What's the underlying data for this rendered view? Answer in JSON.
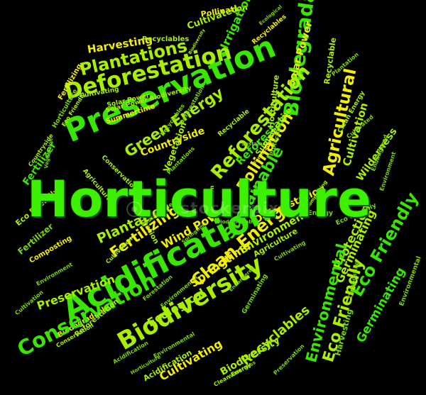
{
  "colors": {
    "background": "#000000",
    "green": "#39e600",
    "lime": "#a8f000",
    "yellow": "#f2f000",
    "mid": "#7bd800"
  },
  "hero": "Horticulture",
  "watermark": "stockerpix",
  "words": [
    {
      "id": "w0",
      "t": "Preservation",
      "c": "g"
    },
    {
      "id": "w1",
      "t": "Deforestation",
      "c": "l"
    },
    {
      "id": "w2",
      "t": "Plantations",
      "c": "l"
    },
    {
      "id": "w3",
      "t": "Harvesting",
      "c": "y"
    },
    {
      "id": "w4",
      "t": "Recyclables",
      "c": "l"
    },
    {
      "id": "w5",
      "t": "Pollination",
      "c": "y"
    },
    {
      "id": "w6",
      "t": "Cultivated",
      "c": "l"
    },
    {
      "id": "w7",
      "t": "Irrigation",
      "c": "g"
    },
    {
      "id": "w8",
      "t": "Ecological",
      "c": "m"
    },
    {
      "id": "w9",
      "t": "Recyclables",
      "c": "y"
    },
    {
      "id": "w10",
      "t": "Biodiversity",
      "c": "l"
    },
    {
      "id": "w11",
      "t": "Solar Power",
      "c": "l"
    },
    {
      "id": "w12",
      "t": "Biodegradable",
      "c": "g"
    },
    {
      "id": "w13",
      "t": "Solar Power",
      "c": "y"
    },
    {
      "id": "w14",
      "t": "Recyclable",
      "c": "l"
    },
    {
      "id": "w15",
      "t": "Plantation",
      "c": "m"
    },
    {
      "id": "w16",
      "t": "Cultivating",
      "c": "l"
    },
    {
      "id": "w17",
      "t": "Fertilizing",
      "c": "y"
    },
    {
      "id": "w18",
      "t": "Eco Friendly",
      "c": "l"
    },
    {
      "id": "w19",
      "t": "Horticulture",
      "c": "m"
    },
    {
      "id": "w20",
      "t": "Countryside",
      "c": "l"
    },
    {
      "id": "w21",
      "t": "Fertilizer",
      "c": "g"
    },
    {
      "id": "w22",
      "t": "Vegetation",
      "c": "m"
    },
    {
      "id": "w23",
      "t": "Conservation",
      "c": "l"
    },
    {
      "id": "w24",
      "t": "Agricultural",
      "c": "l"
    },
    {
      "id": "w25",
      "t": "Green Energy",
      "c": "l"
    },
    {
      "id": "w26",
      "t": "Countryside",
      "c": "y"
    },
    {
      "id": "w27",
      "t": "Summertime",
      "c": "y"
    },
    {
      "id": "w28",
      "t": "Solar Power Biodiversity",
      "c": "l"
    },
    {
      "id": "w29",
      "t": "Reforestation",
      "c": "l"
    },
    {
      "id": "w30",
      "t": "Deforestation",
      "c": "m"
    },
    {
      "id": "w31",
      "t": "Vegetation",
      "c": "l"
    },
    {
      "id": "w32",
      "t": "Plantations",
      "c": "m"
    },
    {
      "id": "w33",
      "t": "Reforestation",
      "c": "g"
    },
    {
      "id": "w34",
      "t": "Recyclable",
      "c": "l"
    },
    {
      "id": "w35",
      "t": "Sustainable",
      "c": "m"
    },
    {
      "id": "w36",
      "t": "Pollination",
      "c": "y"
    },
    {
      "id": "w37",
      "t": "Summertime",
      "c": "l"
    },
    {
      "id": "w38",
      "t": "Protection",
      "c": "m"
    },
    {
      "id": "w39",
      "t": "Horticulture",
      "c": "l"
    },
    {
      "id": "w40",
      "t": "Recyclables",
      "c": "m"
    },
    {
      "id": "w41",
      "t": "Forestation",
      "c": "y"
    },
    {
      "id": "w42",
      "t": "Agricultural",
      "c": "y"
    },
    {
      "id": "w43",
      "t": "Clean Energy",
      "c": "l"
    },
    {
      "id": "w44",
      "t": "Cultivation",
      "c": "l"
    },
    {
      "id": "w45",
      "t": "Cultivated",
      "c": "m"
    },
    {
      "id": "w46",
      "t": "Wilderness",
      "c": "l"
    },
    {
      "id": "w47",
      "t": "Endangered",
      "c": "m"
    },
    {
      "id": "w48",
      "t": "Environment",
      "c": "m"
    },
    {
      "id": "w49",
      "t": "Irrigation",
      "c": "l"
    },
    {
      "id": "w50",
      "t": "Sustainable",
      "c": "m"
    },
    {
      "id": "w51",
      "t": "Springtime",
      "c": "m"
    },
    {
      "id": "w52",
      "t": "Pollination",
      "c": "l"
    },
    {
      "id": "w53",
      "t": "Biodegradable",
      "c": "m"
    },
    {
      "id": "w54",
      "t": "Deforestation",
      "c": "y"
    },
    {
      "id": "w55",
      "t": "Green Energy",
      "c": "m"
    },
    {
      "id": "w56",
      "t": "Plantation",
      "c": "l"
    },
    {
      "id": "w57",
      "t": "Fertilizing",
      "c": "y"
    },
    {
      "id": "w58",
      "t": "Cultivation",
      "c": "l"
    },
    {
      "id": "w59",
      "t": "Wind Power",
      "c": "y"
    },
    {
      "id": "w60",
      "t": "Clean Energy",
      "c": "y"
    },
    {
      "id": "w61",
      "t": "Sustainable",
      "c": "g"
    },
    {
      "id": "w62",
      "t": "Environment",
      "c": "l"
    },
    {
      "id": "w63",
      "t": "Agriculture",
      "c": "l"
    },
    {
      "id": "w64",
      "t": "Cultivating",
      "c": "m"
    },
    {
      "id": "w65",
      "t": "Protection",
      "c": "l"
    },
    {
      "id": "w66",
      "t": "Eco Friendly",
      "c": "g"
    },
    {
      "id": "w67",
      "t": "Germinating",
      "c": "l"
    },
    {
      "id": "w68",
      "t": "Eco Friendly",
      "c": "m"
    },
    {
      "id": "w69",
      "t": "Composting",
      "c": "l"
    },
    {
      "id": "w70",
      "t": "Fertilizer",
      "c": "m"
    },
    {
      "id": "w71",
      "t": "Eco Friendly",
      "c": "l"
    },
    {
      "id": "w72",
      "t": "Composting",
      "c": "y"
    },
    {
      "id": "w73",
      "t": "Acidification",
      "c": "g"
    },
    {
      "id": "w74",
      "t": "Preservation",
      "c": "l"
    },
    {
      "id": "w75",
      "t": "Environment",
      "c": "m"
    },
    {
      "id": "w76",
      "t": "Conservation",
      "c": "l"
    },
    {
      "id": "w77",
      "t": "Cultivation",
      "c": "m"
    },
    {
      "id": "w78",
      "t": "Biodegradable",
      "c": "y"
    },
    {
      "id": "w79",
      "t": "Conservation",
      "c": "g"
    },
    {
      "id": "w80",
      "t": "Reforestation",
      "c": "l"
    },
    {
      "id": "w81",
      "t": "Biodiversity",
      "c": "l"
    },
    {
      "id": "w82",
      "t": "Ecological",
      "c": "l"
    },
    {
      "id": "w83",
      "t": "Environmental",
      "c": "m"
    },
    {
      "id": "w84",
      "t": "Forestation",
      "c": "m"
    },
    {
      "id": "w85",
      "t": "Springtime",
      "c": "y"
    },
    {
      "id": "w86",
      "t": "Endangered",
      "c": "m"
    },
    {
      "id": "w87",
      "t": "Germinating",
      "c": "m"
    },
    {
      "id": "w88",
      "t": "Environmental",
      "c": "g"
    },
    {
      "id": "w89",
      "t": "Eco Friendly",
      "c": "l"
    },
    {
      "id": "w90",
      "t": "Harvesting",
      "c": "m"
    },
    {
      "id": "w91",
      "t": "Germinating",
      "c": "g"
    },
    {
      "id": "w92",
      "t": "Environmental",
      "c": "m"
    },
    {
      "id": "w93",
      "t": "Composting",
      "c": "m"
    },
    {
      "id": "w94",
      "t": "Cultivating",
      "c": "y"
    },
    {
      "id": "w95",
      "t": "Biodiversity",
      "c": "l"
    },
    {
      "id": "w96",
      "t": "Recyclables",
      "c": "l"
    },
    {
      "id": "w97",
      "t": "Wilderness",
      "c": "m"
    },
    {
      "id": "w98",
      "t": "Preservation",
      "c": "m"
    },
    {
      "id": "w99",
      "t": "Clean Energy",
      "c": "l"
    },
    {
      "id": "w100",
      "t": "Acidification",
      "c": "l"
    },
    {
      "id": "w101",
      "t": "Acidification",
      "c": "m"
    },
    {
      "id": "w102",
      "t": "Horticulture",
      "c": "m"
    },
    {
      "id": "w103",
      "t": "Environmental",
      "c": "m"
    }
  ]
}
